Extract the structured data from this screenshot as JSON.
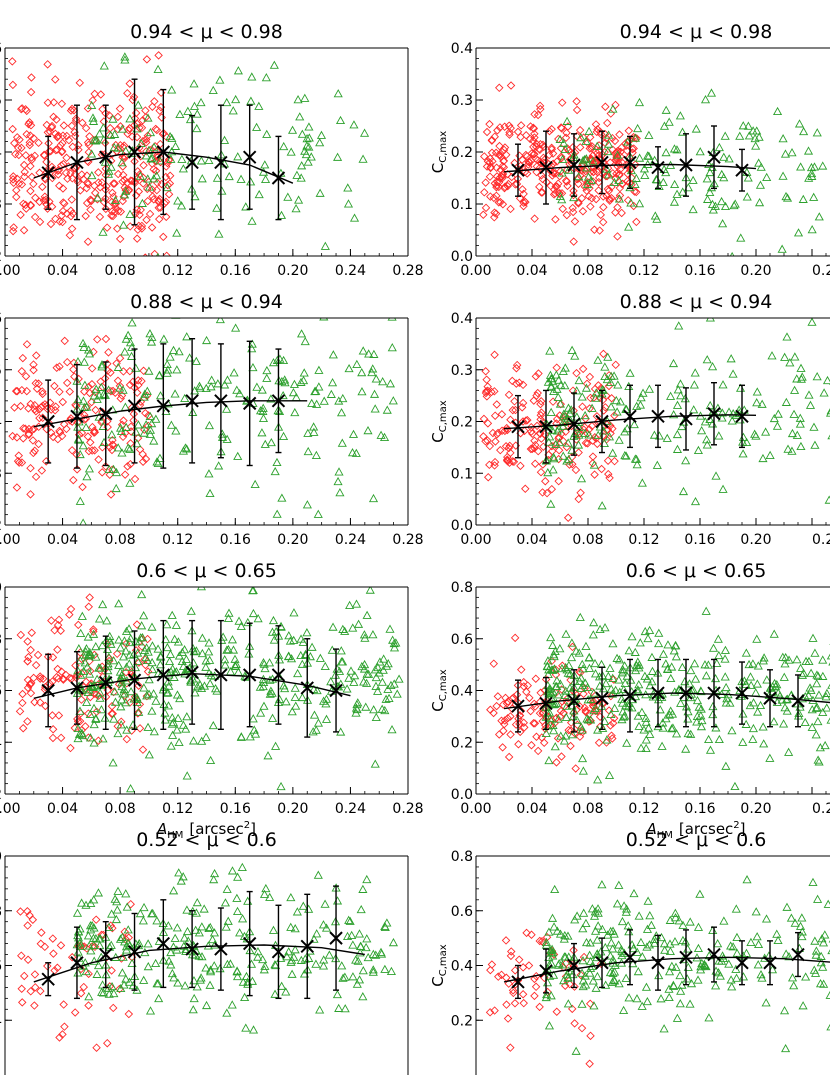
{
  "figure": {
    "x_axis_label": "A",
    "x_axis_label_sub": "HM",
    "x_axis_unit": "[arcsec",
    "x_axis_unit_sup": "2",
    "x_axis_unit_close": "]",
    "y_axis_label_right": "C",
    "y_axis_label_right_sub": "C,max"
  },
  "chart_data": [
    {
      "id": "p1",
      "type": "scatter",
      "title": "0.94 < μ < 0.98",
      "xlim": [
        0,
        0.28
      ],
      "ylim": [
        0.2,
        0.6
      ],
      "xticks": [
        "0.00",
        "0.04",
        "0.08",
        "0.12",
        "0.16",
        "0.20",
        "0.24",
        "0.28"
      ],
      "yticks": [
        ".2",
        ".3",
        ".4",
        ".5",
        ".6"
      ],
      "xlabel": "",
      "ylabel": "",
      "red": {
        "n": 360,
        "xr": [
          0.005,
          0.115
        ],
        "ymean": 0.37,
        "ysd": 0.075
      },
      "green": {
        "n": 150,
        "xr": [
          0.06,
          0.25
        ],
        "ymean": 0.39,
        "ysd": 0.08
      },
      "bins": {
        "x": [
          0.03,
          0.05,
          0.07,
          0.09,
          0.11,
          0.13,
          0.15,
          0.17,
          0.19
        ],
        "y": [
          0.36,
          0.38,
          0.39,
          0.4,
          0.4,
          0.38,
          0.38,
          0.39,
          0.35
        ],
        "err": [
          0.07,
          0.11,
          0.1,
          0.14,
          0.12,
          0.09,
          0.11,
          0.1,
          0.08
        ]
      },
      "fit": [
        [
          0.02,
          0.35
        ],
        [
          0.05,
          0.38
        ],
        [
          0.08,
          0.395
        ],
        [
          0.11,
          0.4
        ],
        [
          0.14,
          0.39
        ],
        [
          0.17,
          0.375
        ],
        [
          0.2,
          0.34
        ]
      ]
    },
    {
      "id": "p2",
      "type": "scatter",
      "title": "0.94 < μ < 0.98",
      "xlim": [
        0,
        0.28
      ],
      "ylim": [
        0,
        0.4
      ],
      "xticks": [
        "0.00",
        "0.04",
        "0.08",
        "0.12",
        "0.16",
        "0.20",
        "0.2"
      ],
      "yticks": [
        "0.0",
        "0.1",
        "0.2",
        "0.3",
        "0.4"
      ],
      "xlabel": "",
      "ylabel": "C_C,max",
      "red": {
        "n": 360,
        "xr": [
          0.005,
          0.115
        ],
        "ymean": 0.17,
        "ysd": 0.05
      },
      "green": {
        "n": 150,
        "xr": [
          0.06,
          0.25
        ],
        "ymean": 0.17,
        "ysd": 0.06
      },
      "bins": {
        "x": [
          0.03,
          0.05,
          0.07,
          0.09,
          0.11,
          0.13,
          0.15,
          0.17,
          0.19
        ],
        "y": [
          0.165,
          0.17,
          0.175,
          0.18,
          0.18,
          0.17,
          0.175,
          0.19,
          0.165
        ],
        "err": [
          0.05,
          0.07,
          0.06,
          0.06,
          0.05,
          0.04,
          0.06,
          0.06,
          0.04
        ],
        "fit": null
      },
      "fit": [
        [
          0.02,
          0.162
        ],
        [
          0.06,
          0.17
        ],
        [
          0.1,
          0.175
        ],
        [
          0.14,
          0.176
        ],
        [
          0.18,
          0.172
        ],
        [
          0.2,
          0.168
        ]
      ]
    },
    {
      "id": "p3",
      "type": "scatter",
      "title": "0.88 < μ < 0.94",
      "xlim": [
        0,
        0.28
      ],
      "ylim": [
        0.2,
        0.6
      ],
      "xticks": [
        "0.00",
        "0.04",
        "0.08",
        "0.12",
        "0.16",
        "0.20",
        "0.24",
        "0.28"
      ],
      "yticks": [
        ".2",
        ".3",
        ".4",
        ".5",
        ".6"
      ],
      "xlabel": "",
      "ylabel": "",
      "red": {
        "n": 190,
        "xr": [
          0.005,
          0.1
        ],
        "ymean": 0.4,
        "ysd": 0.07
      },
      "green": {
        "n": 230,
        "xr": [
          0.05,
          0.27
        ],
        "ymean": 0.43,
        "ysd": 0.08
      },
      "bins": {
        "x": [
          0.03,
          0.05,
          0.07,
          0.09,
          0.11,
          0.13,
          0.15,
          0.17,
          0.19
        ],
        "y": [
          0.4,
          0.41,
          0.415,
          0.43,
          0.43,
          0.44,
          0.44,
          0.435,
          0.44
        ],
        "err": [
          0.08,
          0.1,
          0.1,
          0.11,
          0.12,
          0.12,
          0.11,
          0.12,
          0.1
        ]
      },
      "fit": [
        [
          0.02,
          0.39
        ],
        [
          0.05,
          0.405
        ],
        [
          0.08,
          0.42
        ],
        [
          0.11,
          0.43
        ],
        [
          0.14,
          0.437
        ],
        [
          0.17,
          0.44
        ],
        [
          0.21,
          0.44
        ]
      ]
    },
    {
      "id": "p4",
      "type": "scatter",
      "title": "0.88 < μ < 0.94",
      "xlim": [
        0,
        0.28
      ],
      "ylim": [
        0,
        0.4
      ],
      "xticks": [
        "0.00",
        "0.04",
        "0.08",
        "0.12",
        "0.16",
        "0.20",
        "0.2"
      ],
      "yticks": [
        "0.0",
        "0.1",
        "0.2",
        "0.3",
        "0.4"
      ],
      "xlabel": "",
      "ylabel": "C_C,max",
      "red": {
        "n": 190,
        "xr": [
          0.005,
          0.1
        ],
        "ymean": 0.19,
        "ysd": 0.06
      },
      "green": {
        "n": 230,
        "xr": [
          0.05,
          0.27
        ],
        "ymean": 0.21,
        "ysd": 0.07
      },
      "bins": {
        "x": [
          0.03,
          0.05,
          0.07,
          0.09,
          0.11,
          0.13,
          0.15,
          0.17,
          0.19
        ],
        "y": [
          0.19,
          0.19,
          0.195,
          0.2,
          0.21,
          0.21,
          0.205,
          0.215,
          0.21
        ],
        "err": [
          0.06,
          0.07,
          0.06,
          0.06,
          0.06,
          0.06,
          0.06,
          0.06,
          0.06
        ]
      },
      "fit": [
        [
          0.02,
          0.186
        ],
        [
          0.06,
          0.193
        ],
        [
          0.1,
          0.203
        ],
        [
          0.14,
          0.21
        ],
        [
          0.18,
          0.213
        ],
        [
          0.2,
          0.212
        ]
      ]
    },
    {
      "id": "p5",
      "type": "scatter",
      "title": "0.6 < μ < 0.65",
      "xlim": [
        0,
        0.28
      ],
      "ylim": [
        0.2,
        1.0
      ],
      "xticks": [
        "0.00",
        "0.04",
        "0.08",
        "0.12",
        "0.16",
        "0.20",
        "0.24",
        "0.28"
      ],
      "yticks": [
        ".2",
        ".4",
        ".6",
        ".8",
        ".0"
      ],
      "xlabel": "A_HM [arcsec^2]",
      "ylabel": "",
      "red": {
        "n": 140,
        "xr": [
          0.01,
          0.1
        ],
        "ymean": 0.62,
        "ysd": 0.14
      },
      "green": {
        "n": 420,
        "xr": [
          0.05,
          0.275
        ],
        "ymean": 0.66,
        "ysd": 0.13
      },
      "bins": {
        "x": [
          0.03,
          0.05,
          0.07,
          0.09,
          0.11,
          0.13,
          0.15,
          0.17,
          0.19,
          0.21,
          0.23
        ],
        "y": [
          0.6,
          0.61,
          0.63,
          0.64,
          0.66,
          0.67,
          0.66,
          0.66,
          0.66,
          0.61,
          0.6
        ],
        "err": [
          0.14,
          0.14,
          0.18,
          0.19,
          0.21,
          0.2,
          0.21,
          0.2,
          0.19,
          0.19,
          0.16
        ]
      },
      "fit": [
        [
          0.02,
          0.57
        ],
        [
          0.05,
          0.61
        ],
        [
          0.09,
          0.645
        ],
        [
          0.13,
          0.665
        ],
        [
          0.17,
          0.655
        ],
        [
          0.21,
          0.62
        ],
        [
          0.24,
          0.58
        ]
      ]
    },
    {
      "id": "p6",
      "type": "scatter",
      "title": "0.6 < μ < 0.65",
      "xlim": [
        0,
        0.28
      ],
      "ylim": [
        0,
        0.8
      ],
      "xticks": [
        "0.00",
        "0.04",
        "0.08",
        "0.12",
        "0.16",
        "0.20",
        "0.2"
      ],
      "yticks": [
        "0.0",
        "0.2",
        "0.4",
        "0.6",
        "0.8"
      ],
      "xlabel": "A_HM [arcsec^2]",
      "ylabel": "C_C,max",
      "red": {
        "n": 140,
        "xr": [
          0.01,
          0.1
        ],
        "ymean": 0.33,
        "ysd": 0.1
      },
      "green": {
        "n": 420,
        "xr": [
          0.05,
          0.275
        ],
        "ymean": 0.39,
        "ysd": 0.12
      },
      "bins": {
        "x": [
          0.03,
          0.05,
          0.07,
          0.09,
          0.11,
          0.13,
          0.15,
          0.17,
          0.19,
          0.21,
          0.23
        ],
        "y": [
          0.34,
          0.35,
          0.36,
          0.37,
          0.38,
          0.39,
          0.39,
          0.39,
          0.39,
          0.37,
          0.36
        ],
        "err": [
          0.1,
          0.1,
          0.12,
          0.12,
          0.14,
          0.13,
          0.13,
          0.13,
          0.12,
          0.11,
          0.1
        ]
      },
      "fit": [
        [
          0.02,
          0.33
        ],
        [
          0.06,
          0.36
        ],
        [
          0.1,
          0.38
        ],
        [
          0.14,
          0.39
        ],
        [
          0.18,
          0.385
        ],
        [
          0.22,
          0.37
        ],
        [
          0.26,
          0.35
        ]
      ]
    },
    {
      "id": "p7",
      "type": "scatter",
      "title": "0.52 < μ < 0.6",
      "xlim": [
        0,
        0.28
      ],
      "ylim": [
        0.2,
        1.0
      ],
      "xticks": [],
      "yticks": [
        ".4",
        ".6",
        ".8",
        ".0"
      ],
      "xlabel": "",
      "ylabel": "",
      "red": {
        "n": 60,
        "xr": [
          0.01,
          0.09
        ],
        "ymean": 0.6,
        "ysd": 0.13
      },
      "green": {
        "n": 280,
        "xr": [
          0.05,
          0.27
        ],
        "ymean": 0.66,
        "ysd": 0.12
      },
      "bins": {
        "x": [
          0.03,
          0.05,
          0.07,
          0.09,
          0.11,
          0.13,
          0.15,
          0.17,
          0.19,
          0.21,
          0.23
        ],
        "y": [
          0.55,
          0.61,
          0.64,
          0.65,
          0.68,
          0.66,
          0.66,
          0.68,
          0.65,
          0.67,
          0.7
        ],
        "err": [
          0.06,
          0.13,
          0.12,
          0.14,
          0.16,
          0.14,
          0.15,
          0.19,
          0.17,
          0.19,
          0.19
        ]
      },
      "fit": [
        [
          0.02,
          0.54
        ],
        [
          0.06,
          0.61
        ],
        [
          0.1,
          0.655
        ],
        [
          0.14,
          0.67
        ],
        [
          0.18,
          0.675
        ],
        [
          0.22,
          0.665
        ],
        [
          0.25,
          0.64
        ]
      ]
    },
    {
      "id": "p8",
      "type": "scatter",
      "title": "0.52 < μ < 0.6",
      "xlim": [
        0,
        0.28
      ],
      "ylim": [
        0,
        0.8
      ],
      "xticks": [],
      "yticks": [
        "0.2",
        "0.4",
        "0.6",
        "0.8"
      ],
      "xlabel": "",
      "ylabel": "C_C,max",
      "red": {
        "n": 60,
        "xr": [
          0.01,
          0.09
        ],
        "ymean": 0.35,
        "ysd": 0.1
      },
      "green": {
        "n": 280,
        "xr": [
          0.05,
          0.27
        ],
        "ymean": 0.43,
        "ysd": 0.11
      },
      "bins": {
        "x": [
          0.03,
          0.05,
          0.07,
          0.09,
          0.11,
          0.13,
          0.15,
          0.17,
          0.19,
          0.21,
          0.23
        ],
        "y": [
          0.34,
          0.38,
          0.4,
          0.41,
          0.43,
          0.41,
          0.43,
          0.44,
          0.41,
          0.41,
          0.44
        ],
        "err": [
          0.06,
          0.08,
          0.08,
          0.09,
          0.1,
          0.1,
          0.1,
          0.1,
          0.08,
          0.08,
          0.08
        ]
      },
      "fit": [
        [
          0.02,
          0.34
        ],
        [
          0.06,
          0.38
        ],
        [
          0.1,
          0.41
        ],
        [
          0.14,
          0.425
        ],
        [
          0.18,
          0.43
        ],
        [
          0.22,
          0.425
        ],
        [
          0.26,
          0.41
        ]
      ]
    }
  ]
}
